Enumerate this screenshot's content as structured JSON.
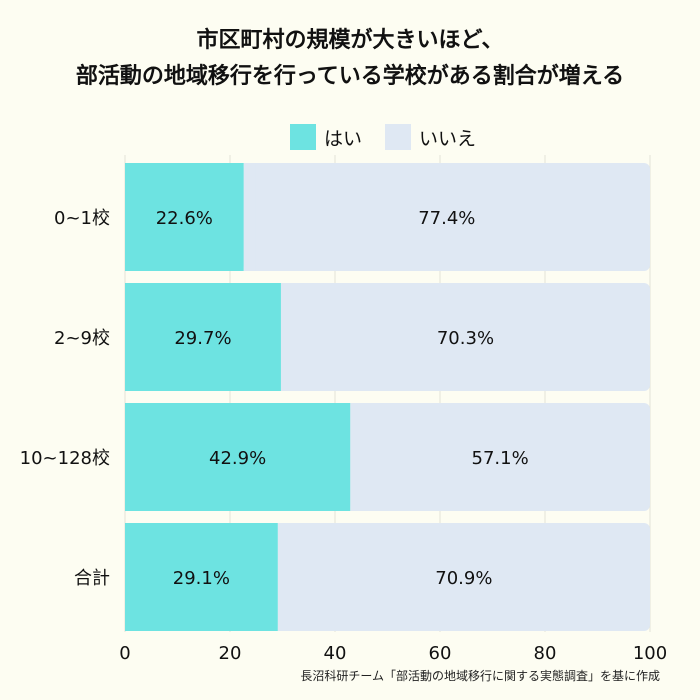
{
  "title_lines": [
    "市区町村の規模が大きいほど、",
    "部活動の地域移行を行っている学校がある割合が増える"
  ],
  "source": "長沼科研チーム「部活動の地域移行に関する実態調査」を基に作成",
  "colors": {
    "yes": "#6de3e1",
    "no": "#dfe8f3",
    "background": "#fdfdf2"
  },
  "chart_data": {
    "type": "bar",
    "orientation": "horizontal",
    "stacked": true,
    "categories": [
      "0~1校",
      "2~9校",
      "10~128校",
      "合計"
    ],
    "series": [
      {
        "name": "はい",
        "values": [
          22.6,
          29.7,
          42.9,
          29.1
        ],
        "labels": [
          "22.6%",
          "29.7%",
          "42.9%",
          "29.1%"
        ]
      },
      {
        "name": "いいえ",
        "values": [
          77.4,
          70.3,
          57.1,
          70.9
        ],
        "labels": [
          "77.4%",
          "70.3%",
          "57.1%",
          "70.9%"
        ]
      }
    ],
    "xlim": [
      0,
      100
    ],
    "xticks": [
      "0",
      "20",
      "40",
      "60",
      "80",
      "100"
    ],
    "legend_position": "top-center",
    "grid": true
  }
}
